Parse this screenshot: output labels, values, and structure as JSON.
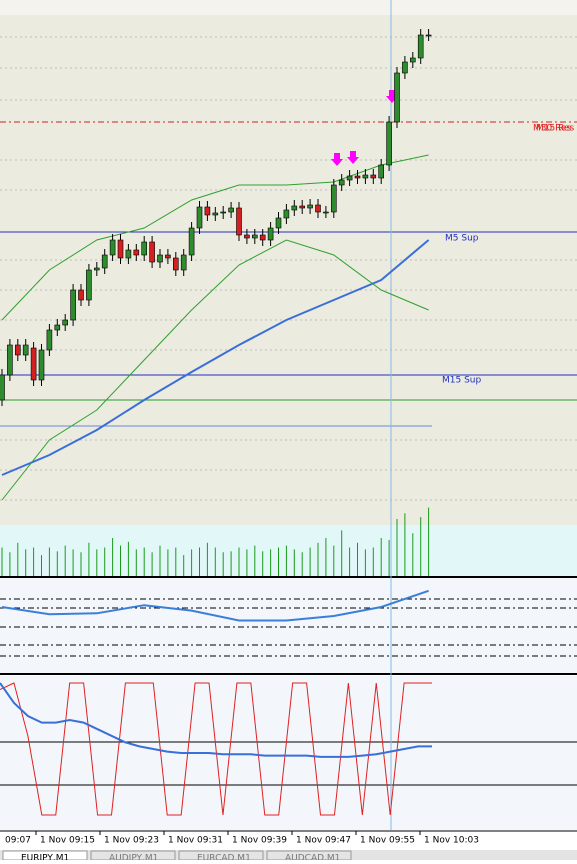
{
  "chart_data": {
    "type": "candlestick",
    "ylim": [
      0,
      525
    ],
    "open": [
      125,
      150,
      180,
      170,
      177,
      145,
      175,
      195,
      200,
      205,
      235,
      225,
      255,
      257,
      270,
      285,
      267,
      275,
      270,
      283,
      263,
      270,
      267,
      255,
      270,
      297,
      318,
      310,
      312,
      313,
      317,
      290,
      287,
      290,
      285,
      297,
      307,
      315,
      319,
      317,
      320,
      313,
      313,
      340,
      345,
      349,
      347,
      350,
      347,
      360,
      403,
      452,
      463,
      467,
      490
    ],
    "high": [
      156,
      186,
      186,
      186,
      183,
      181,
      201,
      206,
      211,
      241,
      241,
      261,
      263,
      276,
      291,
      291,
      281,
      281,
      289,
      289,
      276,
      276,
      273,
      276,
      303,
      324,
      324,
      318,
      319,
      323,
      323,
      296,
      296,
      296,
      303,
      313,
      321,
      325,
      325,
      326,
      326,
      319,
      346,
      351,
      355,
      355,
      356,
      356,
      366,
      409,
      458,
      469,
      473,
      496,
      496
    ],
    "low": [
      119,
      144,
      164,
      164,
      139,
      139,
      169,
      189,
      194,
      199,
      219,
      219,
      249,
      251,
      264,
      261,
      261,
      264,
      264,
      257,
      257,
      261,
      249,
      249,
      264,
      291,
      304,
      304,
      306,
      307,
      284,
      281,
      281,
      279,
      279,
      291,
      301,
      309,
      311,
      311,
      307,
      307,
      307,
      334,
      339,
      341,
      341,
      341,
      341,
      354,
      397,
      446,
      457,
      461,
      484
    ],
    "close": [
      150,
      180,
      170,
      180,
      145,
      175,
      195,
      200,
      205,
      235,
      225,
      255,
      257,
      270,
      285,
      267,
      275,
      270,
      283,
      263,
      270,
      267,
      255,
      270,
      297,
      318,
      310,
      312,
      313,
      317,
      290,
      287,
      290,
      285,
      297,
      307,
      315,
      319,
      317,
      320,
      313,
      313,
      340,
      345,
      349,
      347,
      350,
      347,
      360,
      403,
      452,
      463,
      467,
      490,
      490
    ],
    "bull_color": "#2e8b2e",
    "bear_color": "#d42020",
    "overlay_x": [
      0,
      6,
      12,
      18,
      24,
      30,
      36,
      42,
      48,
      54
    ],
    "overlays": [
      {
        "color": "#3a6fd8",
        "values": [
          50,
          70,
          95,
          125,
          153,
          180,
          205,
          225,
          245,
          285
        ]
      },
      {
        "color": "#2ea02e",
        "values": [
          205,
          255,
          285,
          297,
          325,
          340,
          340,
          343,
          360,
          370
        ]
      },
      {
        "color": "#2ea02e",
        "values": [
          25,
          85,
          115,
          165,
          215,
          260,
          285,
          270,
          235,
          215
        ]
      }
    ],
    "volume": {
      "color": "#1a9a1a",
      "ylim": [
        0,
        80
      ],
      "values": [
        30,
        25,
        35,
        28,
        30,
        22,
        30,
        26,
        32,
        28,
        25,
        35,
        28,
        30,
        40,
        32,
        36,
        28,
        30,
        25,
        32,
        28,
        30,
        22,
        28,
        30,
        35,
        30,
        25,
        26,
        30,
        28,
        32,
        26,
        28,
        30,
        32,
        28,
        25,
        30,
        35,
        40,
        32,
        48,
        30,
        35,
        28,
        30,
        40,
        38,
        60,
        66,
        45,
        62,
        72
      ]
    },
    "rsi": {
      "color": "#3a7fd8",
      "ylim": [
        0,
        100
      ],
      "values": [
        70,
        62,
        63,
        72,
        66,
        55,
        55,
        60,
        70,
        88
      ]
    },
    "stoch": {
      "ylim": [
        0,
        100
      ],
      "main_color": "#e02020",
      "signal_color": "#3a6fd8",
      "main": [
        95,
        100,
        60,
        0,
        0,
        100,
        100,
        0,
        0,
        100,
        100,
        100,
        0,
        0,
        100,
        100,
        0,
        100,
        100,
        0,
        0,
        100,
        100,
        0,
        0,
        100,
        0,
        100,
        0,
        100,
        100,
        100
      ],
      "signal": [
        100,
        85,
        75,
        70,
        70,
        72,
        70,
        65,
        60,
        55,
        52,
        50,
        48,
        47,
        47,
        47,
        46,
        46,
        46,
        45,
        45,
        45,
        45,
        44,
        44,
        44,
        45,
        46,
        48,
        50,
        52,
        52
      ]
    },
    "time_labels": [
      "09:07",
      "1 Nov 09:15",
      "1 Nov 09:23",
      "1 Nov 09:31",
      "1 Nov 09:39",
      "1 Nov 09:47",
      "1 Nov 09:55",
      "1 Nov 10:03"
    ]
  },
  "levels": {
    "m5_sup": "M5 Sup",
    "m15_sup": "M15 Sup",
    "m30_res": "M30 Res",
    "m15_res": "M15 Res"
  },
  "tabs": [
    "EURJPY,M1",
    "AUDJPY,M1",
    "EURCAD,M1",
    "AUDCAD,M1"
  ]
}
